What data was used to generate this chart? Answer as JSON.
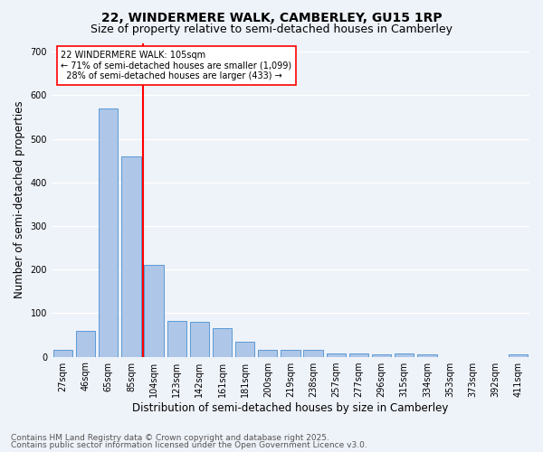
{
  "title_line1": "22, WINDERMERE WALK, CAMBERLEY, GU15 1RP",
  "title_line2": "Size of property relative to semi-detached houses in Camberley",
  "xlabel": "Distribution of semi-detached houses by size in Camberley",
  "ylabel": "Number of semi-detached properties",
  "categories": [
    "27sqm",
    "46sqm",
    "65sqm",
    "85sqm",
    "104sqm",
    "123sqm",
    "142sqm",
    "161sqm",
    "181sqm",
    "200sqm",
    "219sqm",
    "238sqm",
    "257sqm",
    "277sqm",
    "296sqm",
    "315sqm",
    "334sqm",
    "353sqm",
    "373sqm",
    "392sqm",
    "411sqm"
  ],
  "values": [
    15,
    60,
    570,
    460,
    210,
    82,
    80,
    65,
    35,
    15,
    15,
    15,
    8,
    8,
    5,
    8,
    5,
    0,
    0,
    0,
    5
  ],
  "bar_color": "#aec6e8",
  "bar_edge_color": "#5b9bd5",
  "highlight_index": 4,
  "annotation_text": "22 WINDERMERE WALK: 105sqm\n← 71% of semi-detached houses are smaller (1,099)\n  28% of semi-detached houses are larger (433) →",
  "ylim": [
    0,
    720
  ],
  "yticks": [
    0,
    100,
    200,
    300,
    400,
    500,
    600,
    700
  ],
  "footer_line1": "Contains HM Land Registry data © Crown copyright and database right 2025.",
  "footer_line2": "Contains public sector information licensed under the Open Government Licence v3.0.",
  "bg_color": "#eef2f9",
  "plot_bg_color": "#eef2f9",
  "grid_color": "#ffffff",
  "title_fontsize": 10,
  "subtitle_fontsize": 9,
  "axis_label_fontsize": 8.5,
  "tick_fontsize": 7,
  "footer_fontsize": 6.5
}
